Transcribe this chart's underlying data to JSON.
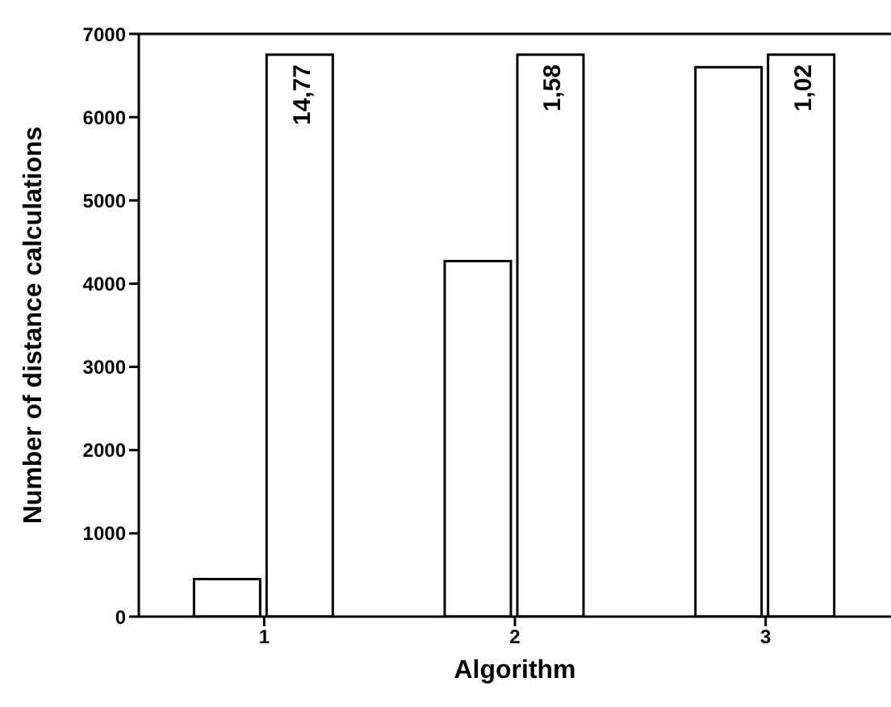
{
  "chart_data": {
    "type": "bar",
    "xlabel": "Algorithm",
    "ylabel": "Number of distance calculations",
    "categories": [
      "1",
      "2",
      "3"
    ],
    "series": [
      {
        "color": "#ffffff",
        "values": [
          450,
          4270,
          6600
        ]
      },
      {
        "color": "#ffffff",
        "values": [
          6750,
          6750,
          6750
        ]
      }
    ],
    "annotations": [
      {
        "text": "14,77",
        "x": "1",
        "y": 6750
      },
      {
        "text": "1,58",
        "x": "2",
        "y": 6750
      },
      {
        "text": "1,02",
        "x": "3",
        "y": 6750
      }
    ],
    "ylim": [
      0,
      7000
    ],
    "yticks": [
      0,
      1000,
      2000,
      3000,
      4000,
      5000,
      6000,
      7000
    ],
    "grid": false,
    "legend": false
  }
}
